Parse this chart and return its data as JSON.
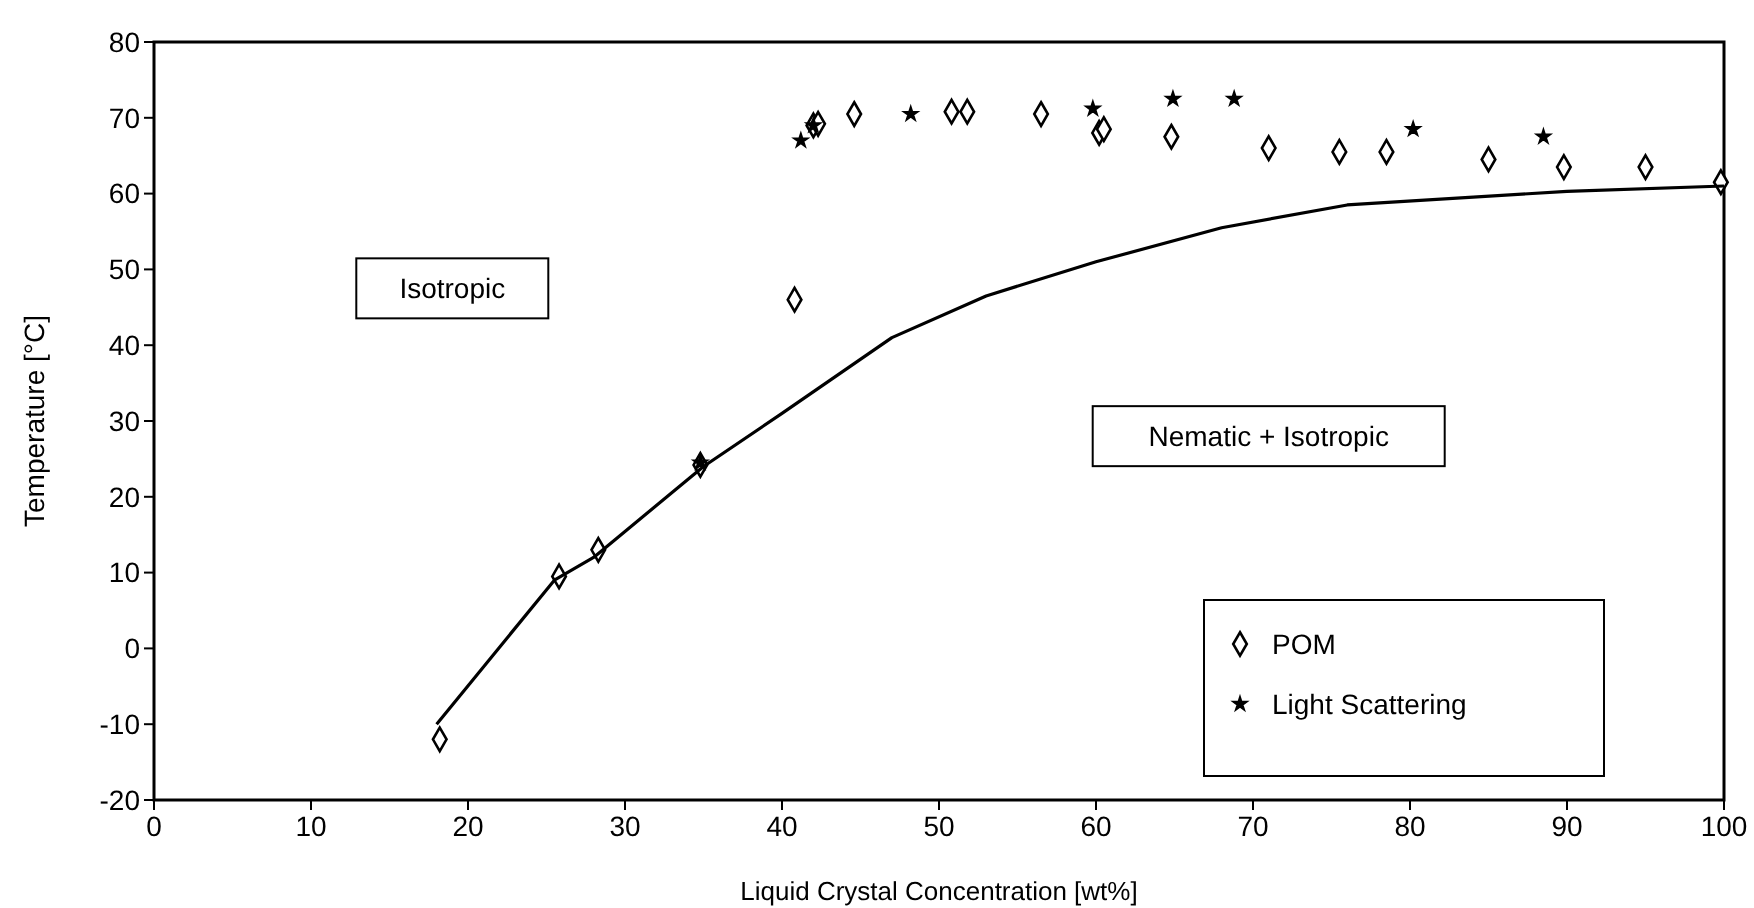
{
  "chart_data": {
    "type": "scatter",
    "xlabel": "Liquid Crystal Concentration [wt%]",
    "ylabel": "Temperature [°C]",
    "xlim": [
      0,
      100
    ],
    "ylim": [
      -20,
      80
    ],
    "xticks": [
      0,
      10,
      20,
      30,
      40,
      50,
      60,
      70,
      80,
      90,
      100
    ],
    "yticks": [
      -20,
      -10,
      0,
      10,
      20,
      30,
      40,
      50,
      60,
      70,
      80
    ],
    "grid": false,
    "legend": "bottom right",
    "annotations": [
      "Isotropic",
      "Nematic + Isotropic"
    ],
    "series": [
      {
        "name": "POM",
        "type": "scatter",
        "marker": "diamond",
        "color": "#000000",
        "x": [
          18.2,
          25.8,
          28.3,
          34.8,
          40.8,
          42,
          42.3,
          44.6,
          50.8,
          51.8,
          56.5,
          60.2,
          60.5,
          64.8,
          71,
          75.5,
          78.5,
          85,
          89.8,
          95,
          99.8
        ],
        "values": [
          -12,
          9.5,
          13,
          24.2,
          46,
          69,
          69.2,
          70.5,
          70.8,
          70.8,
          70.5,
          68,
          68.5,
          67.5,
          66,
          65.5,
          65.5,
          64.5,
          63.5,
          63.5,
          61.5
        ]
      },
      {
        "name": "Light Scattering",
        "type": "scatter",
        "marker": "star",
        "color": "#000000",
        "x": [
          34.8,
          41.2,
          42,
          48.2,
          59.8,
          64.9,
          68.8,
          80.2,
          88.5
        ],
        "values": [
          24.5,
          67,
          69,
          70.5,
          71.2,
          72.5,
          72.5,
          68.5,
          67.5
        ]
      },
      {
        "type": "line",
        "marker": "none",
        "line_style": "solid",
        "color": "#000000",
        "x": [
          18,
          25.5,
          28,
          35,
          40,
          47,
          53,
          60,
          68,
          76,
          90,
          100
        ],
        "values": [
          -10,
          9,
          12,
          24,
          31,
          41,
          46.5,
          51,
          55.5,
          58.5,
          60.3,
          61
        ]
      }
    ]
  }
}
